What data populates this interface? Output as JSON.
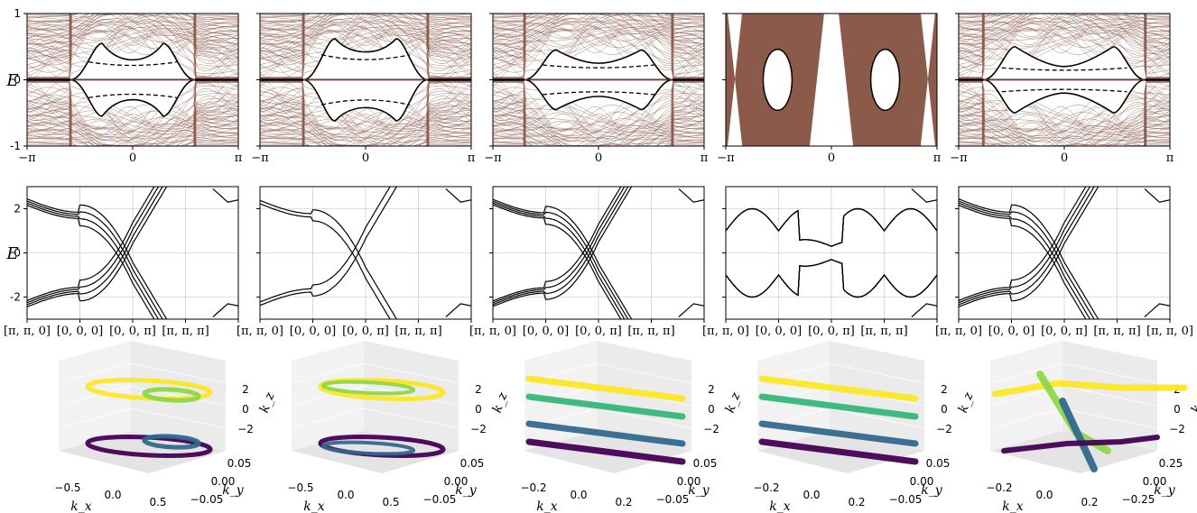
{
  "chart_data": [
    {
      "row": "ribbon spectra",
      "type": "line",
      "ylabel": "E",
      "ylim": [
        -1,
        1
      ],
      "xlim": [
        "-π",
        "π"
      ],
      "x_ticks": [
        "−π",
        "0",
        "π"
      ],
      "y_ticks": [
        "1",
        "0",
        "-1"
      ],
      "colors": {
        "bands": "#8b5a4b",
        "edge": "#000000"
      },
      "panels": [
        {
          "gap_region": [
            -1.85,
            1.85
          ],
          "edge_top": 0.55,
          "edge_mid": 0.3,
          "dense_bulk": false
        },
        {
          "gap_region": [
            -1.85,
            1.85
          ],
          "edge_top": 0.62,
          "edge_mid": 0.42,
          "dense_bulk": false
        },
        {
          "gap_region": [
            -2.2,
            2.2
          ],
          "edge_top": 0.45,
          "edge_mid": 0.25,
          "dense_bulk": false
        },
        {
          "gap_region": [
            -2.0,
            2.0
          ],
          "edge_top": 0.45,
          "edge_mid": 0.3,
          "dense_bulk": true
        },
        {
          "gap_region": [
            -2.4,
            2.4
          ],
          "edge_top": 0.5,
          "edge_mid": 0.2,
          "dense_bulk": false
        }
      ]
    },
    {
      "row": "bulk band structure",
      "type": "line",
      "ylabel": "E",
      "ylim": [
        -3,
        3
      ],
      "y_ticks": [
        "2",
        "0",
        "-2"
      ],
      "x_ticks": [
        "[π, π, 0]",
        "[0, 0, 0]",
        "[0, 0, π]",
        "[π, π, π]",
        "[π, π, 0]"
      ],
      "colors": {
        "bands": "#000000"
      },
      "panels": [
        {
          "crossings": 4,
          "shift": 0.35
        },
        {
          "crossings": 2,
          "shift": 0.0
        },
        {
          "crossings": 4,
          "shift": 0.3
        },
        {
          "crossings": 4,
          "shift": 0.0
        },
        {
          "crossings": 4,
          "shift": 0.35
        }
      ]
    },
    {
      "row": "3D nodal lines",
      "type": "scatter",
      "xlabel": "k_x",
      "ylabel": "k_y",
      "zlabel": "k_z",
      "z_ticks": [
        "2",
        "0",
        "−2"
      ],
      "colors": [
        "#fde725",
        "#8fd744",
        "#35b779",
        "#31688e",
        "#440154"
      ],
      "panels": [
        {
          "kx_ticks": [
            "−0.5",
            "0.0",
            "0.5"
          ],
          "ky_ticks": [
            "0.05",
            "0.00",
            "−0.05"
          ],
          "kind": "loops"
        },
        {
          "kx_ticks": [
            "−0.5",
            "0.0",
            "0.5"
          ],
          "ky_ticks": [
            "0.05",
            "0.00",
            "−0.05"
          ],
          "kind": "rings"
        },
        {
          "kx_ticks": [
            "−0.2",
            "0.0",
            "0.2"
          ],
          "ky_ticks": [
            "0.05",
            "0.00",
            "−0.05"
          ],
          "kind": "stripes"
        },
        {
          "kx_ticks": [
            "−0.2",
            "0.0",
            "0.2"
          ],
          "ky_ticks": [
            "0.05",
            "0.00",
            "−0.05"
          ],
          "kind": "stripes"
        },
        {
          "kx_ticks": [
            "−0.2",
            "0.0",
            "0.2"
          ],
          "ky_ticks": [
            "0.25",
            "0.00",
            "−0.25"
          ],
          "kind": "chains"
        }
      ]
    }
  ]
}
